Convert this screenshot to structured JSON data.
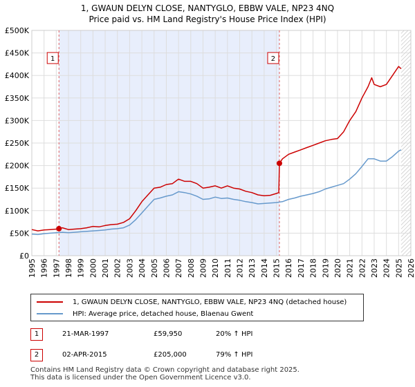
{
  "title_line1": "1, GWAUN DELYN CLOSE, NANTYGLO, EBBW VALE, NP23 4NQ",
  "title_line2": "Price paid vs. HM Land Registry's House Price Index (HPI)",
  "colors": {
    "price_line": "#cc0000",
    "hpi_line": "#6699cc",
    "shade": "#e8eefc",
    "grid": "#dddddd",
    "marker_line": "#e06060"
  },
  "chart_data": {
    "type": "line",
    "title": "Price paid vs. HM Land Registry's House Price Index (HPI)",
    "xlabel": "",
    "ylabel": "",
    "xlim": [
      1995,
      2026
    ],
    "ylim": [
      0,
      500000
    ],
    "x_ticks": [
      "1995",
      "1996",
      "1997",
      "1998",
      "1999",
      "2000",
      "2001",
      "2002",
      "2003",
      "2004",
      "2005",
      "2006",
      "2007",
      "2008",
      "2009",
      "2010",
      "2011",
      "2012",
      "2013",
      "2014",
      "2015",
      "2016",
      "2017",
      "2018",
      "2019",
      "2020",
      "2021",
      "2022",
      "2023",
      "2024",
      "2025",
      "2026"
    ],
    "y_ticks": [
      {
        "value": 0,
        "label": "£0"
      },
      {
        "value": 50000,
        "label": "£50K"
      },
      {
        "value": 100000,
        "label": "£100K"
      },
      {
        "value": 150000,
        "label": "£150K"
      },
      {
        "value": 200000,
        "label": "£200K"
      },
      {
        "value": 250000,
        "label": "£250K"
      },
      {
        "value": 300000,
        "label": "£300K"
      },
      {
        "value": 350000,
        "label": "£350K"
      },
      {
        "value": 400000,
        "label": "£400K"
      },
      {
        "value": 450000,
        "label": "£450K"
      },
      {
        "value": 500000,
        "label": "£500K"
      }
    ],
    "grid": true,
    "shaded_range": [
      1997.22,
      2015.25
    ],
    "hatched_from": 2025.2,
    "series": [
      {
        "name": "1, GWAUN DELYN CLOSE, NANTYGLO, EBBW VALE, NP23 4NQ (detached house)",
        "color": "#cc0000",
        "x": [
          1995.0,
          1995.5,
          1996.0,
          1996.5,
          1997.0,
          1997.22,
          1997.5,
          1998.0,
          1998.5,
          1999.0,
          1999.5,
          2000.0,
          2000.5,
          2001.0,
          2001.5,
          2002.0,
          2002.5,
          2003.0,
          2003.5,
          2004.0,
          2004.5,
          2005.0,
          2005.5,
          2006.0,
          2006.5,
          2007.0,
          2007.5,
          2008.0,
          2008.5,
          2009.0,
          2009.5,
          2010.0,
          2010.5,
          2011.0,
          2011.5,
          2012.0,
          2012.5,
          2013.0,
          2013.5,
          2014.0,
          2014.5,
          2015.0,
          2015.2,
          2015.25,
          2015.5,
          2016.0,
          2016.5,
          2017.0,
          2017.5,
          2018.0,
          2018.5,
          2019.0,
          2019.5,
          2020.0,
          2020.5,
          2021.0,
          2021.5,
          2022.0,
          2022.5,
          2022.8,
          2023.0,
          2023.5,
          2024.0,
          2024.5,
          2025.0,
          2025.2
        ],
        "values": [
          58000,
          55000,
          57000,
          58000,
          59000,
          59950,
          62000,
          58000,
          59000,
          60000,
          62000,
          65000,
          64000,
          67000,
          69000,
          70000,
          74000,
          82000,
          100000,
          120000,
          135000,
          150000,
          152000,
          158000,
          160000,
          170000,
          165000,
          165000,
          160000,
          150000,
          152000,
          155000,
          150000,
          155000,
          150000,
          148000,
          143000,
          140000,
          135000,
          133000,
          134000,
          138000,
          140000,
          205000,
          215000,
          225000,
          230000,
          235000,
          240000,
          245000,
          250000,
          255000,
          258000,
          260000,
          275000,
          300000,
          320000,
          350000,
          375000,
          395000,
          380000,
          375000,
          380000,
          400000,
          420000,
          415000
        ]
      },
      {
        "name": "HPI: Average price, detached house, Blaenau Gwent",
        "color": "#6699cc",
        "x": [
          1995.0,
          1995.5,
          1996.0,
          1996.5,
          1997.0,
          1997.5,
          1998.0,
          1998.5,
          1999.0,
          1999.5,
          2000.0,
          2000.5,
          2001.0,
          2001.5,
          2002.0,
          2002.5,
          2003.0,
          2003.5,
          2004.0,
          2004.5,
          2005.0,
          2005.5,
          2006.0,
          2006.5,
          2007.0,
          2007.5,
          2008.0,
          2008.5,
          2009.0,
          2009.5,
          2010.0,
          2010.5,
          2011.0,
          2011.5,
          2012.0,
          2012.5,
          2013.0,
          2013.5,
          2014.0,
          2014.5,
          2015.0,
          2015.5,
          2016.0,
          2016.5,
          2017.0,
          2017.5,
          2018.0,
          2018.5,
          2019.0,
          2019.5,
          2020.0,
          2020.5,
          2021.0,
          2021.5,
          2022.0,
          2022.5,
          2023.0,
          2023.5,
          2024.0,
          2024.5,
          2025.0,
          2025.2
        ],
        "values": [
          48000,
          47000,
          49000,
          50000,
          51000,
          52000,
          51000,
          52000,
          53000,
          54000,
          55000,
          56000,
          57000,
          59000,
          60000,
          62000,
          68000,
          80000,
          95000,
          110000,
          125000,
          128000,
          132000,
          135000,
          142000,
          140000,
          137000,
          132000,
          125000,
          126000,
          130000,
          127000,
          128000,
          125000,
          123000,
          120000,
          118000,
          115000,
          116000,
          117000,
          118000,
          120000,
          125000,
          128000,
          132000,
          135000,
          138000,
          142000,
          148000,
          152000,
          156000,
          160000,
          170000,
          182000,
          198000,
          215000,
          215000,
          210000,
          210000,
          220000,
          232000,
          235000
        ]
      }
    ],
    "annotations": [
      {
        "label": "1",
        "x": 1997.22,
        "y": 59950
      },
      {
        "label": "2",
        "x": 2015.25,
        "y": 205000
      }
    ],
    "legend_position": "below"
  },
  "legend": {
    "price_label": "1, GWAUN DELYN CLOSE, NANTYGLO, EBBW VALE, NP23 4NQ (detached house)",
    "hpi_label": "HPI: Average price, detached house, Blaenau Gwent"
  },
  "sales": [
    {
      "num": "1",
      "date": "21-MAR-1997",
      "price": "£59,950",
      "hpi": "20% ↑ HPI"
    },
    {
      "num": "2",
      "date": "02-APR-2015",
      "price": "£205,000",
      "hpi": "79% ↑ HPI"
    }
  ],
  "footer_line1": "Contains HM Land Registry data © Crown copyright and database right 2025.",
  "footer_line2": "This data is licensed under the Open Government Licence v3.0."
}
